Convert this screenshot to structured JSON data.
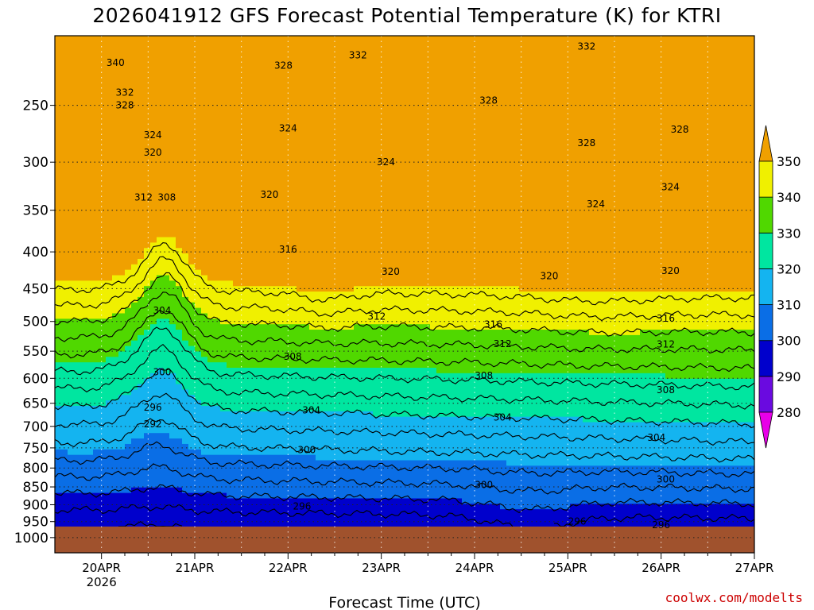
{
  "chart_data": {
    "type": "heatmap",
    "title": "2026041912 GFS Forecast Potential Temperature (K) for KTRI",
    "xlabel": "Forecast Time (UTC)",
    "ylabel": "",
    "x_ticks": [
      "20APR",
      "21APR",
      "22APR",
      "23APR",
      "24APR",
      "25APR",
      "26APR",
      "27APR"
    ],
    "x_year_label": "2026",
    "x_range_days": [
      19.5,
      27.0
    ],
    "y_ticks": [
      250,
      300,
      350,
      400,
      450,
      500,
      550,
      600,
      650,
      700,
      750,
      800,
      850,
      900,
      950,
      1000
    ],
    "y_range_hpa": [
      200,
      1050
    ],
    "surface_pressure_hpa": 965,
    "colorbar": {
      "ticks": [
        280,
        290,
        300,
        310,
        320,
        330,
        340,
        350
      ],
      "colors": [
        "#e800e8",
        "#6a0ae0",
        "#0000cc",
        "#0a6ee6",
        "#14b4f0",
        "#00e6a0",
        "#50d800",
        "#f0f000",
        "#f0a000"
      ]
    },
    "contour_labels": [
      {
        "value": "340",
        "day": 20.15,
        "p": 218
      },
      {
        "value": "332",
        "day": 20.25,
        "p": 240
      },
      {
        "value": "328",
        "day": 20.25,
        "p": 250
      },
      {
        "value": "324",
        "day": 20.55,
        "p": 275
      },
      {
        "value": "320",
        "day": 20.55,
        "p": 291
      },
      {
        "value": "312",
        "day": 20.45,
        "p": 336
      },
      {
        "value": "308",
        "day": 20.7,
        "p": 336
      },
      {
        "value": "328",
        "day": 21.95,
        "p": 220
      },
      {
        "value": "332",
        "day": 22.75,
        "p": 213
      },
      {
        "value": "324",
        "day": 22.0,
        "p": 269
      },
      {
        "value": "320",
        "day": 21.8,
        "p": 333
      },
      {
        "value": "316",
        "day": 22.0,
        "p": 397
      },
      {
        "value": "324",
        "day": 23.05,
        "p": 300
      },
      {
        "value": "320",
        "day": 23.1,
        "p": 426
      },
      {
        "value": "328",
        "day": 24.15,
        "p": 246
      },
      {
        "value": "304",
        "day": 20.65,
        "p": 483
      },
      {
        "value": "312",
        "day": 22.95,
        "p": 492
      },
      {
        "value": "308",
        "day": 22.05,
        "p": 560
      },
      {
        "value": "300",
        "day": 20.65,
        "p": 588
      },
      {
        "value": "296",
        "day": 20.55,
        "p": 659
      },
      {
        "value": "292",
        "day": 20.55,
        "p": 695
      },
      {
        "value": "304",
        "day": 22.25,
        "p": 665
      },
      {
        "value": "300",
        "day": 22.2,
        "p": 755
      },
      {
        "value": "296",
        "day": 22.15,
        "p": 905
      },
      {
        "value": "332",
        "day": 25.2,
        "p": 207
      },
      {
        "value": "328",
        "day": 25.2,
        "p": 282
      },
      {
        "value": "328",
        "day": 26.2,
        "p": 270
      },
      {
        "value": "324",
        "day": 25.3,
        "p": 343
      },
      {
        "value": "324",
        "day": 26.1,
        "p": 325
      },
      {
        "value": "320",
        "day": 24.8,
        "p": 432
      },
      {
        "value": "320",
        "day": 26.1,
        "p": 425
      },
      {
        "value": "316",
        "day": 24.2,
        "p": 505
      },
      {
        "value": "316",
        "day": 26.05,
        "p": 495
      },
      {
        "value": "312",
        "day": 24.3,
        "p": 537
      },
      {
        "value": "312",
        "day": 26.05,
        "p": 538
      },
      {
        "value": "308",
        "day": 24.1,
        "p": 595
      },
      {
        "value": "308",
        "day": 26.05,
        "p": 623
      },
      {
        "value": "304",
        "day": 24.3,
        "p": 680
      },
      {
        "value": "304",
        "day": 25.95,
        "p": 726
      },
      {
        "value": "300",
        "day": 24.1,
        "p": 844
      },
      {
        "value": "300",
        "day": 26.05,
        "p": 830
      },
      {
        "value": "296",
        "day": 25.1,
        "p": 950
      },
      {
        "value": "296",
        "day": 26.0,
        "p": 960
      }
    ]
  },
  "credit": "coolwx.com/modelts"
}
